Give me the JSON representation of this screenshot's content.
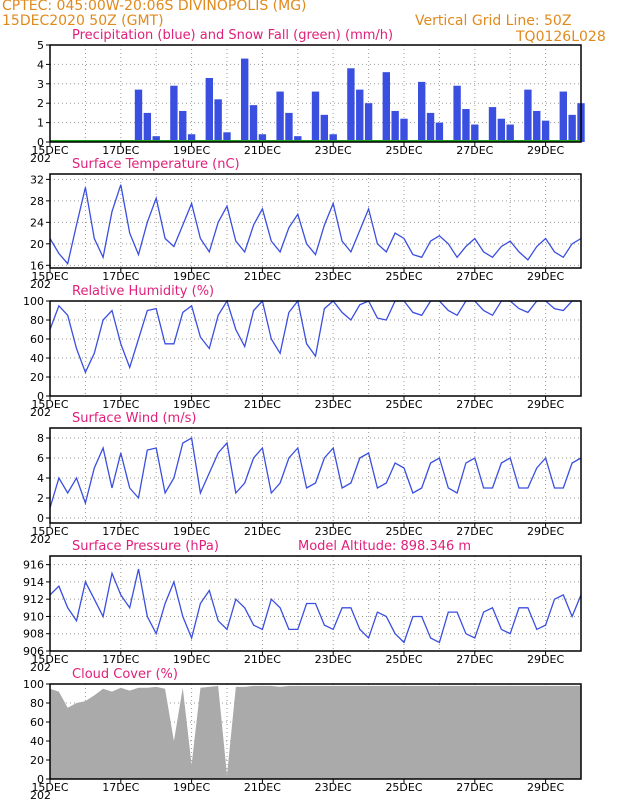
{
  "header": {
    "line1": "CPTEC:  045:00W-20:06S  DIVINOPOLIS (MG)",
    "line2": "15DEC2020 50Z (GMT)",
    "grid_note": "Vertical Grid Line: 50Z",
    "code": "TQ0126L028"
  },
  "colors": {
    "series": "#3a4fe0",
    "snow": "#1aa01a",
    "cloud": "#aaaaaa",
    "title": "#e0207a",
    "header": "#e08a1e"
  },
  "x_ticks": [
    "15DEC",
    "17DEC",
    "19DEC",
    "21DEC",
    "23DEC",
    "25DEC",
    "27DEC",
    "29DEC"
  ],
  "x_year_fragment": "202",
  "chart_data": [
    {
      "id": "precip",
      "type": "bar",
      "title": "Precipitation (blue) and Snow Fall (green) (mm/h)",
      "ylim": [
        0,
        5
      ],
      "yticks": [
        0,
        1,
        2,
        3,
        4,
        5
      ],
      "x_hours": [
        60,
        66,
        72,
        84,
        90,
        96,
        108,
        114,
        120,
        132,
        138,
        144,
        156,
        162,
        168,
        180,
        186,
        192,
        204,
        210,
        216,
        228,
        234,
        240,
        252,
        258,
        264,
        276,
        282,
        288,
        300,
        306,
        312,
        324,
        330,
        336,
        348,
        354,
        360
      ],
      "values": [
        2.7,
        1.5,
        0.3,
        2.9,
        1.6,
        0.4,
        3.3,
        2.2,
        0.5,
        4.3,
        1.9,
        0.4,
        2.6,
        1.5,
        0.3,
        2.6,
        1.4,
        0.4,
        3.8,
        2.7,
        2.0,
        3.6,
        1.6,
        1.2,
        3.1,
        1.5,
        1.0,
        2.9,
        1.7,
        0.9,
        1.8,
        1.2,
        0.9,
        2.7,
        1.6,
        1.1,
        2.6,
        1.4,
        2.0
      ],
      "snow": 0
    },
    {
      "id": "temp",
      "type": "line",
      "title": "Surface Temperature (nC)",
      "ylim": [
        15.5,
        33
      ],
      "yticks": [
        16,
        20,
        24,
        28,
        32
      ],
      "x_hours": [
        0,
        6,
        12,
        18,
        24,
        30,
        36,
        42,
        48,
        54,
        60,
        66,
        72,
        78,
        84,
        90,
        96,
        102,
        108,
        114,
        120,
        126,
        132,
        138,
        144,
        150,
        156,
        162,
        168,
        174,
        180,
        186,
        192,
        198,
        204,
        210,
        216,
        222,
        228,
        234,
        240,
        246,
        252,
        258,
        264,
        270,
        276,
        282,
        288,
        294,
        300,
        306,
        312,
        318,
        324,
        330,
        336,
        342,
        348,
        354,
        360
      ],
      "values": [
        21,
        18.2,
        16.3,
        23.5,
        30.5,
        21,
        17.5,
        26,
        31,
        22,
        18,
        24,
        28.5,
        21,
        19.5,
        23.5,
        27.5,
        21,
        18.5,
        24,
        27,
        20.5,
        18.5,
        23.5,
        26.5,
        20.5,
        18.5,
        23,
        25.5,
        20,
        18,
        23.5,
        27.5,
        20.5,
        18.5,
        22.5,
        26.5,
        20,
        18.5,
        22,
        21,
        18,
        17.5,
        20.5,
        21.5,
        20,
        17.5,
        19.5,
        21,
        18.5,
        17.5,
        19.5,
        20.5,
        18.5,
        17,
        19.5,
        21,
        18.5,
        17.5,
        20,
        21
      ]
    },
    {
      "id": "rh",
      "type": "line",
      "title": "Relative Humidity (%)",
      "ylim": [
        0,
        100
      ],
      "yticks": [
        0,
        20,
        40,
        60,
        80,
        100
      ],
      "x_hours": [
        0,
        6,
        12,
        18,
        24,
        30,
        36,
        42,
        48,
        54,
        60,
        66,
        72,
        78,
        84,
        90,
        96,
        102,
        108,
        114,
        120,
        126,
        132,
        138,
        144,
        150,
        156,
        162,
        168,
        174,
        180,
        186,
        192,
        198,
        204,
        210,
        216,
        222,
        228,
        234,
        240,
        246,
        252,
        258,
        264,
        270,
        276,
        282,
        288,
        294,
        300,
        306,
        312,
        318,
        324,
        330,
        336,
        342,
        348,
        354,
        360
      ],
      "values": [
        70,
        95,
        85,
        50,
        25,
        45,
        80,
        90,
        55,
        30,
        60,
        90,
        92,
        55,
        55,
        88,
        95,
        62,
        50,
        85,
        100,
        70,
        52,
        90,
        100,
        60,
        45,
        88,
        100,
        55,
        42,
        92,
        100,
        88,
        80,
        96,
        100,
        82,
        80,
        100,
        100,
        88,
        85,
        100,
        100,
        90,
        85,
        100,
        100,
        90,
        85,
        100,
        100,
        92,
        88,
        100,
        100,
        92,
        90,
        100,
        100
      ]
    },
    {
      "id": "wind",
      "type": "line",
      "title": "Surface Wind (m/s)",
      "ylim": [
        -0.5,
        9
      ],
      "yticks": [
        0,
        2,
        4,
        6,
        8
      ],
      "x_hours": [
        0,
        6,
        12,
        18,
        24,
        30,
        36,
        42,
        48,
        54,
        60,
        66,
        72,
        78,
        84,
        90,
        96,
        102,
        108,
        114,
        120,
        126,
        132,
        138,
        144,
        150,
        156,
        162,
        168,
        174,
        180,
        186,
        192,
        198,
        204,
        210,
        216,
        222,
        228,
        234,
        240,
        246,
        252,
        258,
        264,
        270,
        276,
        282,
        288,
        294,
        300,
        306,
        312,
        318,
        324,
        330,
        336,
        342,
        348,
        354,
        360
      ],
      "values": [
        1,
        4,
        2.5,
        4,
        1.5,
        5,
        7,
        3,
        6.5,
        3,
        2,
        6.8,
        7,
        2.5,
        4,
        7.5,
        8,
        2.5,
        4.5,
        6.5,
        7.5,
        2.5,
        3.5,
        6,
        7,
        2.5,
        3.5,
        6,
        7,
        3,
        3.5,
        6,
        7,
        3,
        3.5,
        6,
        6.5,
        3,
        3.5,
        5.5,
        5,
        2.5,
        3,
        5.5,
        6,
        3,
        2.5,
        5.5,
        6,
        3,
        3,
        5.5,
        6,
        3,
        3,
        5,
        6,
        3,
        3,
        5.5,
        6
      ]
    },
    {
      "id": "pres",
      "type": "line",
      "title": "Surface Pressure (hPa)",
      "subtitle": "Model Altitude: 898.346 m",
      "ylim": [
        906,
        917
      ],
      "yticks": [
        906,
        908,
        910,
        912,
        914,
        916
      ],
      "x_hours": [
        0,
        6,
        12,
        18,
        24,
        30,
        36,
        42,
        48,
        54,
        60,
        66,
        72,
        78,
        84,
        90,
        96,
        102,
        108,
        114,
        120,
        126,
        132,
        138,
        144,
        150,
        156,
        162,
        168,
        174,
        180,
        186,
        192,
        198,
        204,
        210,
        216,
        222,
        228,
        234,
        240,
        246,
        252,
        258,
        264,
        270,
        276,
        282,
        288,
        294,
        300,
        306,
        312,
        318,
        324,
        330,
        336,
        342,
        348,
        354,
        360
      ],
      "values": [
        912.5,
        913.5,
        911,
        909.5,
        914,
        912,
        910,
        915,
        912.5,
        911,
        915.5,
        910,
        908,
        911.5,
        914,
        910,
        907.5,
        911.5,
        913,
        909.5,
        908.5,
        912,
        911,
        909,
        908.5,
        912,
        911,
        908.5,
        908.5,
        911.5,
        911.5,
        909,
        908.5,
        911,
        911,
        908.5,
        907.5,
        910.5,
        910,
        908,
        907,
        910,
        910,
        907.5,
        907,
        910.5,
        910.5,
        908,
        907.5,
        910.5,
        911,
        908.5,
        908,
        911,
        911,
        908.5,
        909,
        912,
        912.5,
        910,
        912.5
      ]
    },
    {
      "id": "cloud",
      "type": "area",
      "title": "Cloud Cover (%)",
      "ylim": [
        0,
        100
      ],
      "yticks": [
        0,
        20,
        40,
        60,
        80,
        100
      ],
      "x_hours": [
        0,
        6,
        12,
        18,
        24,
        30,
        36,
        42,
        48,
        54,
        60,
        66,
        72,
        78,
        84,
        90,
        96,
        102,
        108,
        114,
        120,
        126,
        132,
        138,
        144,
        150,
        156,
        162,
        168,
        174,
        180,
        186,
        192,
        198,
        204,
        210,
        216,
        222,
        228,
        234,
        240,
        246,
        252,
        258,
        264,
        270,
        276,
        282,
        288,
        294,
        300,
        306,
        312,
        318,
        324,
        330,
        336,
        342,
        348,
        354,
        360
      ],
      "values": [
        95,
        92,
        75,
        80,
        82,
        88,
        95,
        92,
        96,
        93,
        96,
        96,
        97,
        95,
        40,
        96,
        15,
        96,
        97,
        98,
        4,
        97,
        97,
        98,
        98,
        98,
        97,
        98,
        98,
        98,
        98,
        98,
        98,
        98,
        98,
        98,
        98,
        98,
        98,
        98,
        98,
        98,
        98,
        98,
        98,
        98,
        98,
        98,
        98,
        98,
        98,
        98,
        98,
        98,
        98,
        98,
        98,
        98,
        98,
        98,
        98
      ]
    }
  ]
}
